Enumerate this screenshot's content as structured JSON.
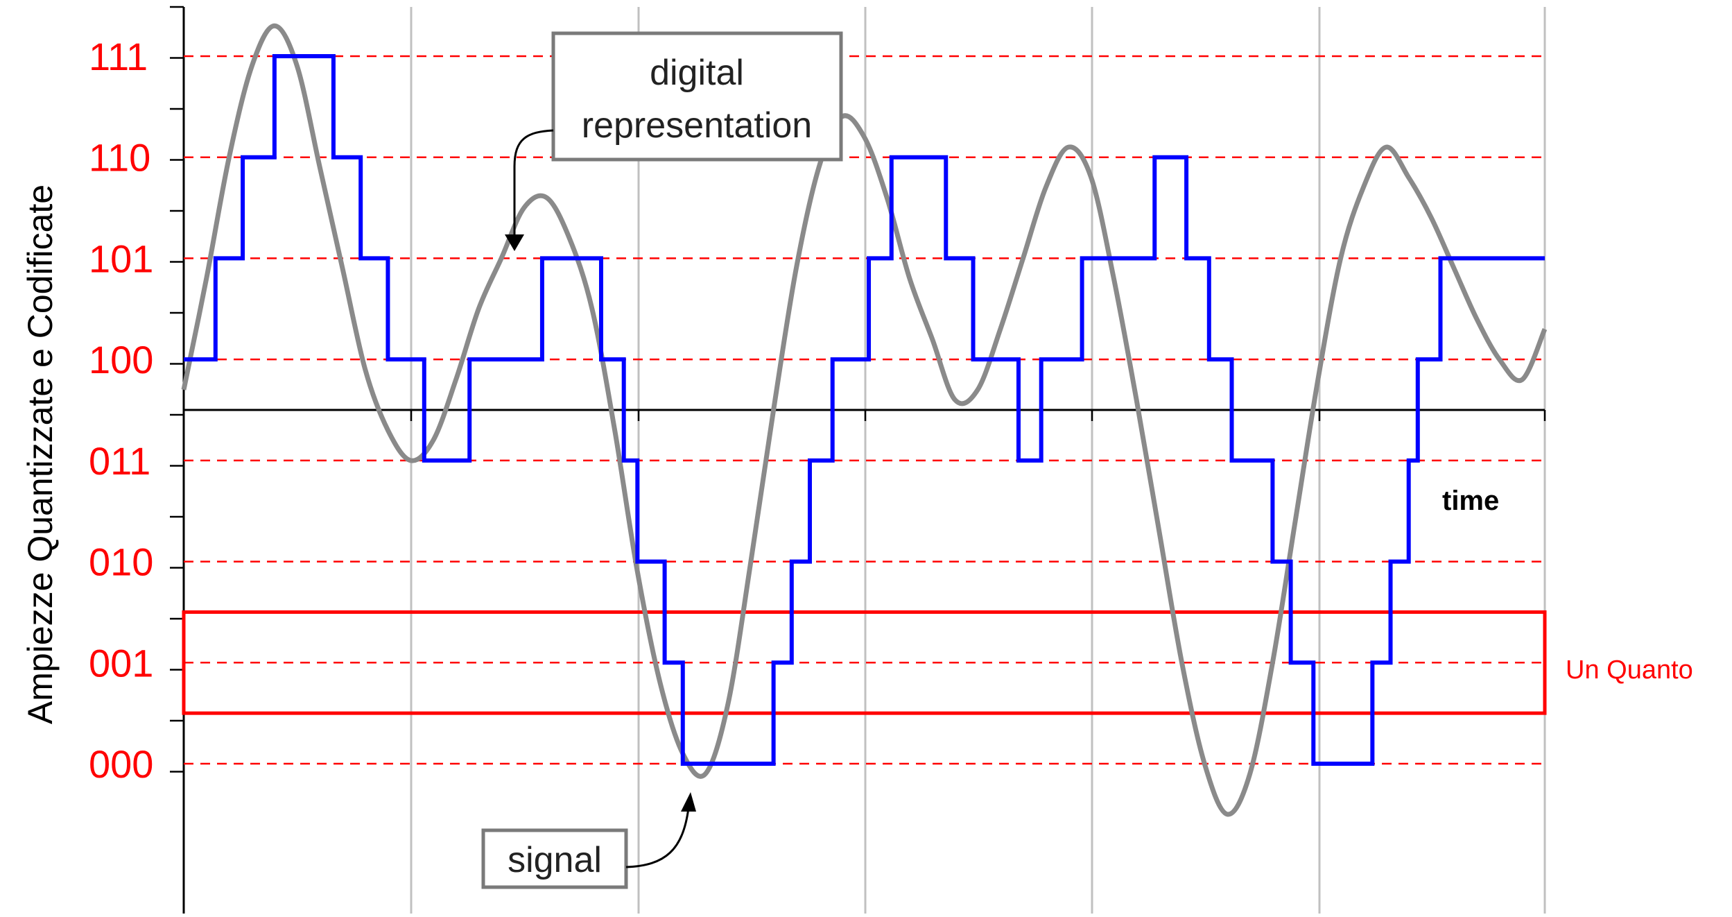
{
  "chart_data": {
    "type": "line",
    "title": "",
    "xlabel": "time",
    "ylabel": "Ampiezze Quantizzate e Codificate",
    "levels": [
      "111",
      "110",
      "101",
      "100",
      "011",
      "010",
      "001",
      "000"
    ],
    "ylim": [
      -0.5,
      8.6
    ],
    "xlim": [
      0,
      30
    ],
    "grid": true,
    "annotations": {
      "digital": "digital representation",
      "signal": "signal",
      "quantum": "Un Quanto"
    },
    "quantum_band": [
      0.5,
      1.5
    ],
    "series": [
      {
        "name": "signal",
        "x": [
          0,
          0.5,
          1,
          1.5,
          2,
          2.5,
          3,
          3.5,
          4,
          4.5,
          5,
          5.5,
          6,
          6.5,
          7,
          7.5,
          8,
          8.5,
          9,
          9.5,
          10,
          10.5,
          11,
          11.5,
          12,
          12.5,
          13,
          13.5,
          14,
          14.5,
          15,
          15.5,
          16,
          16.5,
          17,
          17.5,
          18,
          18.5,
          19,
          19.5,
          20,
          20.5,
          21,
          21.5,
          22,
          22.5,
          23,
          23.5,
          24,
          24.5,
          25,
          25.5,
          26,
          26.5,
          27,
          27.5,
          28,
          28.5,
          29,
          29.5,
          30
        ],
        "y": [
          3.7,
          4.8,
          6.0,
          6.9,
          7.3,
          6.9,
          5.9,
          4.9,
          3.9,
          3.3,
          3.0,
          3.2,
          3.8,
          4.5,
          5.0,
          5.5,
          5.6,
          5.2,
          4.5,
          3.3,
          1.9,
          0.8,
          0.1,
          -0.1,
          0.6,
          2.0,
          3.5,
          4.9,
          5.9,
          6.4,
          6.2,
          5.6,
          4.8,
          4.2,
          3.6,
          3.7,
          4.3,
          5.0,
          5.7,
          6.1,
          5.8,
          4.8,
          3.6,
          2.3,
          1.0,
          -0.0,
          -0.5,
          -0.1,
          1.0,
          2.4,
          3.8,
          5.0,
          5.7,
          6.1,
          5.8,
          5.4,
          4.9,
          4.4,
          4.0,
          3.8,
          4.3
        ]
      },
      {
        "name": "digital representation",
        "x": [
          0,
          0.4,
          0.7,
          1.3,
          2.0,
          2.6,
          3.3,
          3.9,
          4.5,
          5.3,
          6.1,
          6.3,
          7.2,
          7.9,
          8.5,
          9.2,
          9.7,
          10.0,
          10.6,
          11.0,
          11.4,
          12.1,
          12.5,
          13.0,
          13.4,
          13.8,
          14.3,
          15.1,
          15.6,
          16.2,
          16.8,
          17.4,
          17.8,
          18.4,
          18.9,
          19.4,
          19.8,
          20.2,
          20.6,
          21.4,
          22.1,
          22.6,
          23.1,
          24.0,
          24.4,
          24.9,
          25.1,
          25.6,
          26.2,
          26.6,
          27.0,
          27.2,
          27.7
        ],
        "y": [
          4,
          4,
          5,
          6,
          7,
          7,
          6,
          5,
          4,
          3,
          3,
          4,
          4,
          5,
          5,
          4,
          3,
          2,
          1,
          0,
          0,
          0,
          0,
          1,
          2,
          3,
          4,
          5,
          6,
          6,
          5,
          4,
          4,
          3,
          4,
          4,
          5,
          5,
          5,
          6,
          5,
          4,
          3,
          2,
          1,
          0,
          0,
          0,
          1,
          2,
          3,
          4,
          5
        ]
      }
    ]
  }
}
